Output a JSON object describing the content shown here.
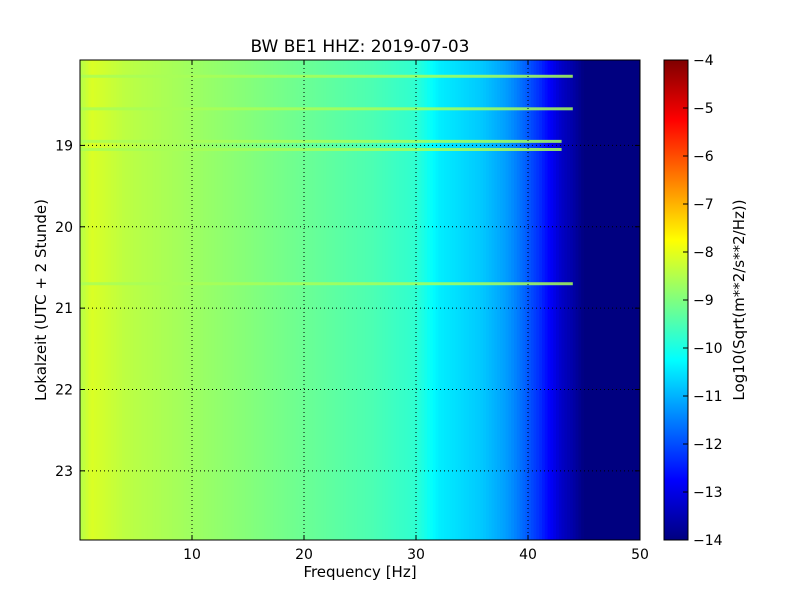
{
  "chart_data": {
    "type": "heatmap",
    "title": "BW BE1 HHZ: 2019-07-03",
    "xlabel": "Frequency [Hz]",
    "ylabel": "Lokalzeit (UTC + 2 Stunde)",
    "xlim": [
      0,
      50
    ],
    "ylim": [
      17.95,
      23.85
    ],
    "y_inverted": true,
    "x_ticks": [
      10,
      20,
      30,
      40,
      50
    ],
    "y_ticks": [
      19,
      20,
      21,
      22,
      23
    ],
    "grid": true,
    "colormap": "jet",
    "colorbar": {
      "label": "Log10(Sqrt(m**2/s**2/Hz))",
      "range": [
        -14,
        -4
      ],
      "ticks": [
        -4,
        -5,
        -6,
        -7,
        -8,
        -9,
        -10,
        -11,
        -12,
        -13,
        -14
      ]
    },
    "frequency_profile": {
      "frequency_hz": [
        0,
        1,
        2,
        4,
        6,
        8,
        10,
        14,
        18,
        22,
        26,
        30,
        32,
        34,
        36,
        38,
        39,
        40,
        41,
        42,
        43,
        44,
        45,
        50
      ],
      "log10_amplitude": [
        -8.5,
        -8.1,
        -8.2,
        -8.4,
        -8.5,
        -8.6,
        -8.7,
        -8.9,
        -9.1,
        -9.3,
        -9.5,
        -9.8,
        -10.4,
        -10.6,
        -10.8,
        -11.2,
        -11.5,
        -11.9,
        -12.3,
        -12.8,
        -13.3,
        -13.6,
        -14,
        -14
      ]
    },
    "bright_lines": [
      {
        "time": 18.15,
        "max_frequency_hz": 44
      },
      {
        "time": 18.55,
        "max_frequency_hz": 44
      },
      {
        "time": 18.95,
        "max_frequency_hz": 43
      },
      {
        "time": 19.05,
        "max_frequency_hz": 43
      },
      {
        "time": 20.7,
        "max_frequency_hz": 44
      }
    ]
  }
}
